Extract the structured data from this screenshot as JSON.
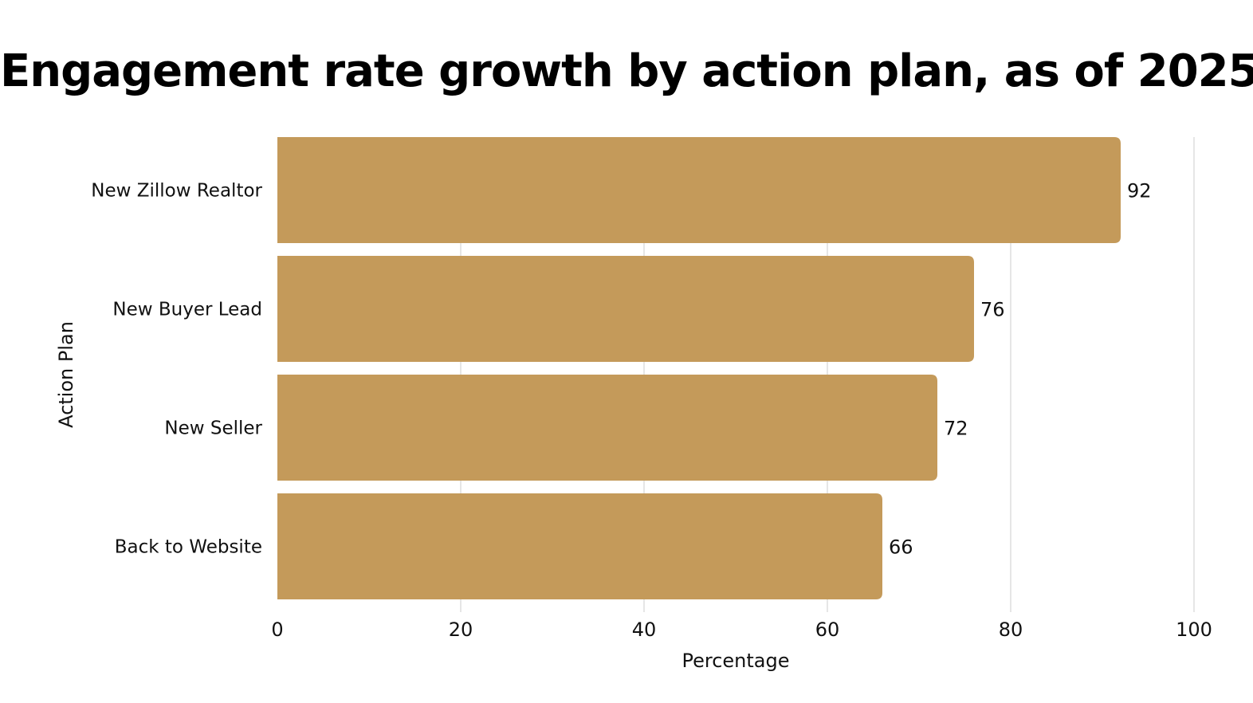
{
  "chart_data": {
    "type": "bar",
    "orientation": "horizontal",
    "title": "Engagement rate growth by action plan, as of 2025",
    "xlabel": "Percentage",
    "ylabel": "Action Plan",
    "categories": [
      "New Zillow Realtor",
      "New Buyer Lead",
      "New Seller",
      "Back to Website"
    ],
    "values": [
      92,
      76,
      72,
      66
    ],
    "value_labels": [
      "92",
      "76",
      "72",
      "66"
    ],
    "xlim": [
      0,
      100
    ],
    "xticks": [
      0,
      20,
      40,
      60,
      80,
      100
    ],
    "xtick_labels": [
      "0",
      "20",
      "40",
      "60",
      "80",
      "100"
    ],
    "grid": "vertical",
    "legend": "none",
    "bar_color": "#C49A5A",
    "grid_color": "#DDDDDD"
  }
}
